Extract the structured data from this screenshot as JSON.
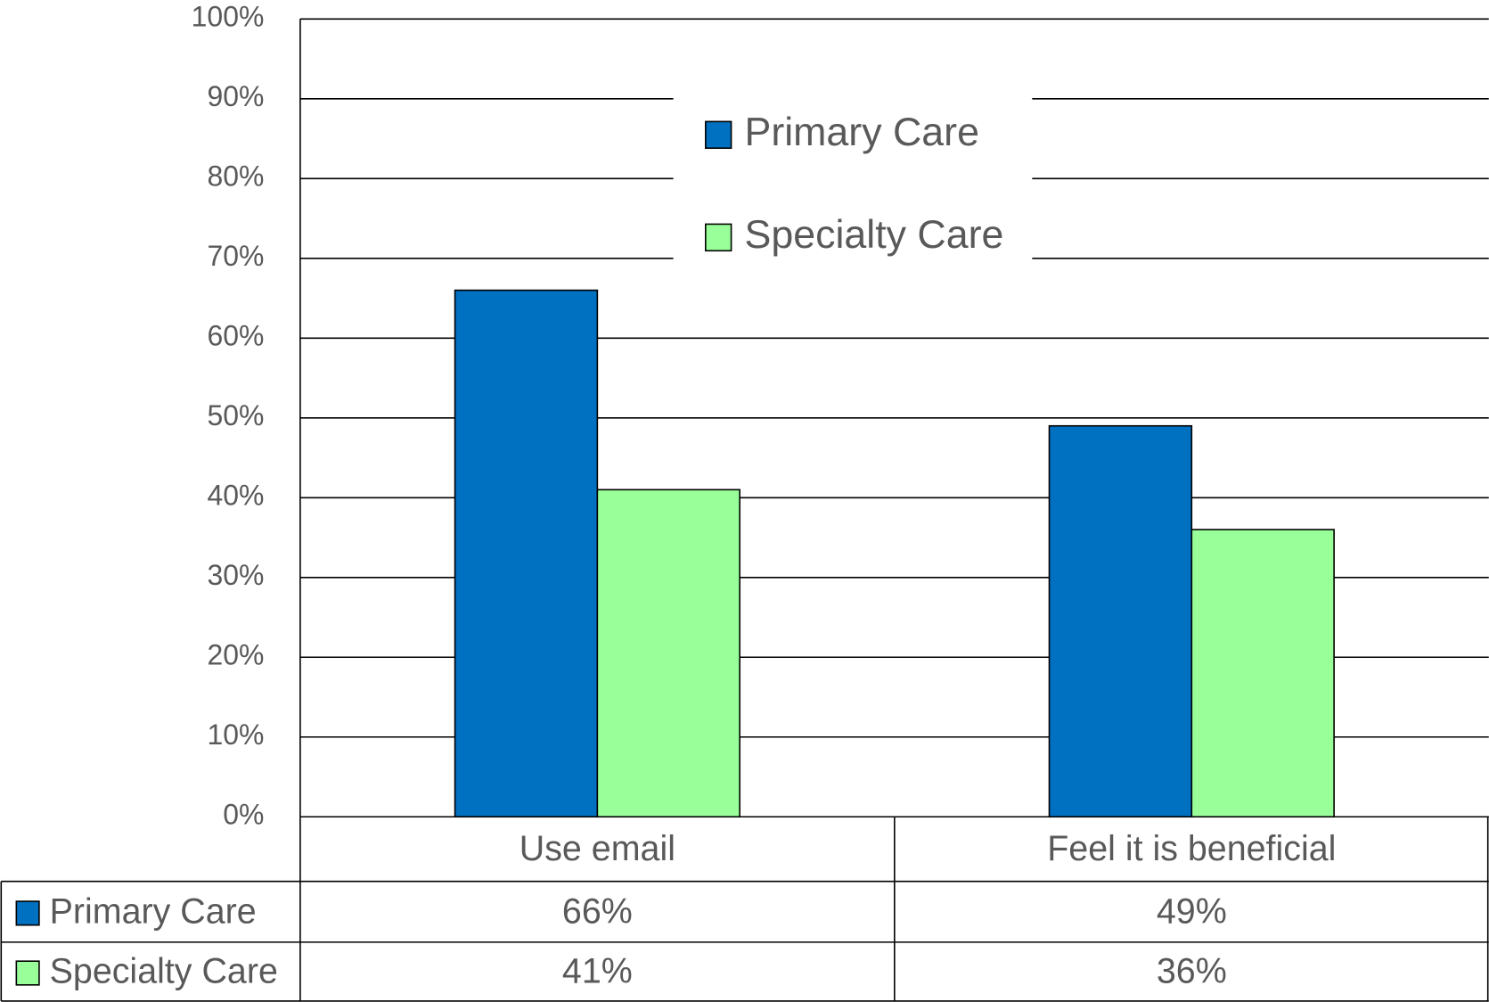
{
  "chart_data": {
    "type": "bar",
    "categories": [
      "Use email",
      "Feel it is beneficial"
    ],
    "series": [
      {
        "name": "Primary Care",
        "color": "#0070c0",
        "values": [
          66,
          49
        ],
        "value_labels": [
          "66%",
          "49%"
        ]
      },
      {
        "name": "Specialty Care",
        "color": "#99ff99",
        "values": [
          41,
          36
        ],
        "value_labels": [
          "41%",
          "36%"
        ]
      }
    ],
    "ylim": [
      0,
      100
    ],
    "yticks": [
      {
        "value": 0,
        "label": "0%"
      },
      {
        "value": 10,
        "label": "10%"
      },
      {
        "value": 20,
        "label": "20%"
      },
      {
        "value": 30,
        "label": "30%"
      },
      {
        "value": 40,
        "label": "40%"
      },
      {
        "value": 50,
        "label": "50%"
      },
      {
        "value": 60,
        "label": "60%"
      },
      {
        "value": 70,
        "label": "70%"
      },
      {
        "value": 80,
        "label": "80%"
      },
      {
        "value": 90,
        "label": "90%"
      },
      {
        "value": 100,
        "label": "100%"
      }
    ],
    "grid": true,
    "legend": "top",
    "data_table": true
  }
}
